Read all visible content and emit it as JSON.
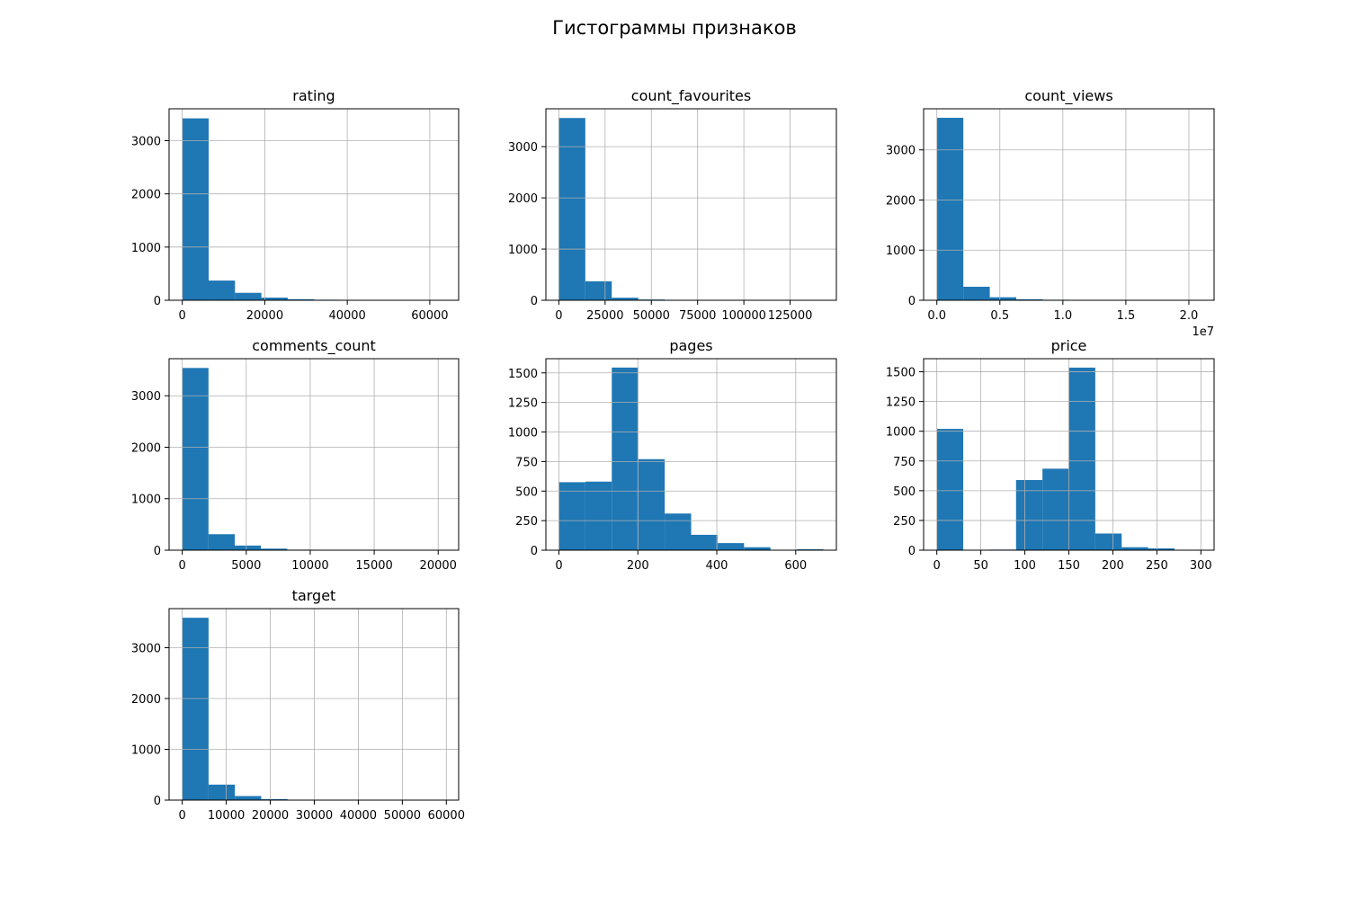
{
  "figure": {
    "title": "Гистограммы признаков"
  },
  "style": {
    "bar_color": "#1f77b4",
    "grid_color": "#b0b0b0",
    "axis_color": "#000000"
  },
  "chart_data": [
    {
      "type": "bar",
      "title": "rating",
      "bin_edges": [
        0,
        6390,
        12780,
        19170,
        25560,
        31950,
        38340,
        44730,
        51120,
        57510,
        63900
      ],
      "values": [
        3420,
        370,
        140,
        50,
        20,
        10,
        5,
        0,
        0,
        2
      ],
      "xlim": [
        -3200,
        67000
      ],
      "ylim": [
        0,
        3600
      ],
      "xticks": [
        0,
        20000,
        40000,
        60000
      ],
      "xtick_labels": [
        "0",
        "20000",
        "40000",
        "60000"
      ],
      "yticks": [
        0,
        1000,
        2000,
        3000
      ],
      "ytick_labels": [
        "0",
        "1000",
        "2000",
        "3000"
      ],
      "grid": true
    },
    {
      "type": "bar",
      "title": "count_favourites",
      "bin_edges": [
        0,
        14300,
        28600,
        42900,
        57200,
        71500,
        85800,
        100100,
        114400,
        128700,
        143000
      ],
      "values": [
        3560,
        370,
        50,
        15,
        5,
        2,
        1,
        0,
        0,
        1
      ],
      "xlim": [
        -7000,
        150000
      ],
      "ylim": [
        0,
        3740
      ],
      "xticks": [
        0,
        25000,
        50000,
        75000,
        100000,
        125000
      ],
      "xtick_labels": [
        "0",
        "25000",
        "50000",
        "75000",
        "100000",
        "125000"
      ],
      "yticks": [
        0,
        1000,
        2000,
        3000
      ],
      "ytick_labels": [
        "0",
        "1000",
        "2000",
        "3000"
      ],
      "grid": true
    },
    {
      "type": "bar",
      "title": "count_views",
      "bin_edges": [
        0,
        0.21,
        0.42,
        0.63,
        0.84,
        1.05,
        1.26,
        1.47,
        1.68,
        1.89,
        2.1
      ],
      "values": [
        3640,
        270,
        60,
        20,
        10,
        5,
        2,
        0,
        0,
        1
      ],
      "xlim": [
        -0.105,
        2.2
      ],
      "ylim": [
        0,
        3820
      ],
      "xticks": [
        0,
        0.5,
        1.0,
        1.5,
        2.0
      ],
      "xtick_labels": [
        "0.0",
        "0.5",
        "1.0",
        "1.5",
        "2.0"
      ],
      "yticks": [
        0,
        1000,
        2000,
        3000
      ],
      "ytick_labels": [
        "0",
        "1000",
        "2000",
        "3000"
      ],
      "offset_label": "1e7",
      "grid": true
    },
    {
      "type": "bar",
      "title": "comments_count",
      "bin_edges": [
        0,
        2050,
        4100,
        6150,
        8200,
        10250,
        12300,
        14350,
        16400,
        18450,
        20500
      ],
      "values": [
        3540,
        310,
        90,
        30,
        10,
        3,
        1,
        0,
        0,
        1
      ],
      "xlim": [
        -1030,
        21600
      ],
      "ylim": [
        0,
        3720
      ],
      "xticks": [
        0,
        5000,
        10000,
        15000,
        20000
      ],
      "xtick_labels": [
        "0",
        "5000",
        "10000",
        "15000",
        "20000"
      ],
      "yticks": [
        0,
        1000,
        2000,
        3000
      ],
      "ytick_labels": [
        "0",
        "1000",
        "2000",
        "3000"
      ],
      "grid": true
    },
    {
      "type": "bar",
      "title": "pages",
      "bin_edges": [
        0,
        67,
        134,
        201,
        268,
        335,
        402,
        469,
        536,
        603,
        670
      ],
      "values": [
        575,
        580,
        1545,
        770,
        310,
        130,
        60,
        25,
        3,
        8
      ],
      "xlim": [
        -33,
        703
      ],
      "ylim": [
        0,
        1620
      ],
      "xticks": [
        0,
        200,
        400,
        600
      ],
      "xtick_labels": [
        "0",
        "200",
        "400",
        "600"
      ],
      "yticks": [
        0,
        250,
        500,
        750,
        1000,
        1250,
        1500
      ],
      "ytick_labels": [
        "0",
        "250",
        "500",
        "750",
        "1000",
        "1250",
        "1500"
      ],
      "grid": true
    },
    {
      "type": "bar",
      "title": "price",
      "bin_edges": [
        0,
        30,
        60,
        90,
        120,
        150,
        180,
        210,
        240,
        270,
        300
      ],
      "values": [
        1020,
        0,
        5,
        590,
        685,
        1535,
        140,
        25,
        15,
        2
      ],
      "xlim": [
        -15,
        315
      ],
      "ylim": [
        0,
        1610
      ],
      "xticks": [
        0,
        50,
        100,
        150,
        200,
        250,
        300
      ],
      "xtick_labels": [
        "0",
        "50",
        "100",
        "150",
        "200",
        "250",
        "300"
      ],
      "yticks": [
        0,
        250,
        500,
        750,
        1000,
        1250,
        1500
      ],
      "ytick_labels": [
        "0",
        "250",
        "500",
        "750",
        "1000",
        "1250",
        "1500"
      ],
      "grid": true
    },
    {
      "type": "bar",
      "title": "target",
      "bin_edges": [
        0,
        5980,
        11960,
        17940,
        23920,
        29900,
        35880,
        41860,
        47840,
        53820,
        59800
      ],
      "values": [
        3590,
        305,
        80,
        20,
        8,
        3,
        1,
        0,
        0,
        1
      ],
      "xlim": [
        -2990,
        62800
      ],
      "ylim": [
        0,
        3770
      ],
      "xticks": [
        0,
        10000,
        20000,
        30000,
        40000,
        50000,
        60000
      ],
      "xtick_labels": [
        "0",
        "10000",
        "20000",
        "30000",
        "40000",
        "50000",
        "60000"
      ],
      "yticks": [
        0,
        1000,
        2000,
        3000
      ],
      "ytick_labels": [
        "0",
        "1000",
        "2000",
        "3000"
      ],
      "grid": true
    }
  ]
}
